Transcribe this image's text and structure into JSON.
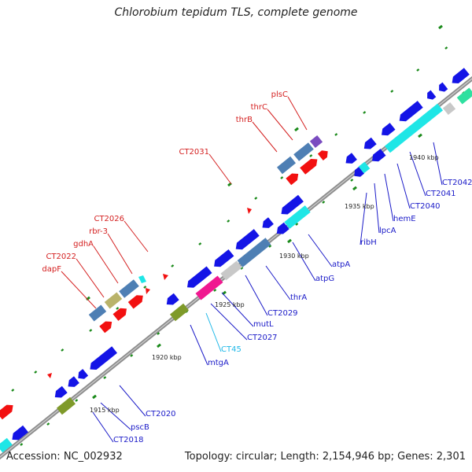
{
  "title": "Chlorobium tepidum TLS, complete genome",
  "footer": {
    "accession": "Accession: NC_002932",
    "topology": "Topology: circular; Length: 2,154,946 bp; Genes: 2,301"
  },
  "colors": {
    "backbone": "#909090",
    "forward_label": "#d42020",
    "reverse_label": "#1a1ac8",
    "rna_label": "#20b8e8",
    "tick": "#1a8a1a"
  },
  "scale_labels": [
    "1915 kbp",
    "1920 kbp",
    "1925 kbp",
    "1930 kbp",
    "1935 kbp",
    "1940 kbp"
  ],
  "forward_labels": [
    "dapF",
    "CT2022",
    "gdhA",
    "rbr-3",
    "CT2026",
    "CT2031",
    "thrB",
    "thrC",
    "plsC"
  ],
  "reverse_labels": [
    "CT2018",
    "pscB",
    "CT2020",
    "mtgA",
    "CT45",
    "CT2027",
    "mutL",
    "CT2029",
    "thrA",
    "atpG",
    "atpA",
    "ribH",
    "lpcA",
    "hemE",
    "CT2040",
    "CT2041",
    "CT2042"
  ]
}
